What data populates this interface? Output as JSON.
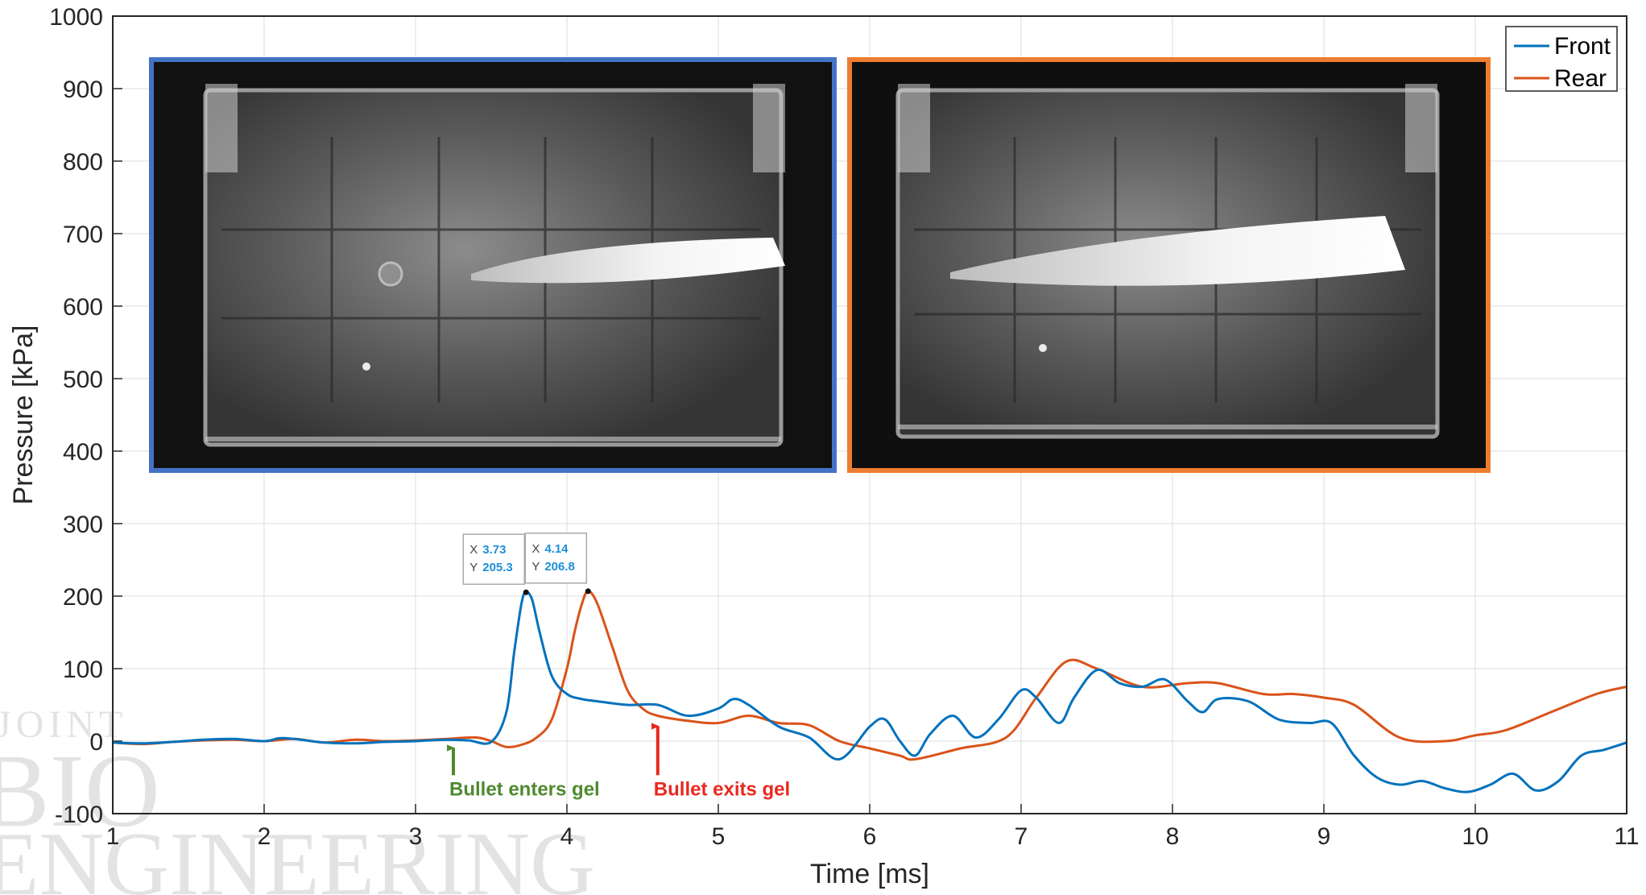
{
  "chart_data": {
    "type": "line",
    "title": "",
    "xlabel": "Time [ms]",
    "ylabel": "Pressure [kPa]",
    "xlim": [
      1,
      11
    ],
    "ylim": [
      -100,
      1000
    ],
    "xticks": [
      "1",
      "2",
      "3",
      "4",
      "5",
      "6",
      "7",
      "8",
      "9",
      "10",
      "11"
    ],
    "yticks": [
      "-100",
      "0",
      "100",
      "200",
      "300",
      "400",
      "500",
      "600",
      "700",
      "800",
      "900",
      "1000"
    ],
    "grid": true,
    "legend_position": "top-right",
    "series": [
      {
        "name": "Front",
        "color": "#0072BD",
        "x": [
          1.0,
          1.2,
          1.4,
          1.6,
          1.8,
          2.0,
          2.1,
          2.2,
          2.4,
          2.6,
          2.8,
          3.0,
          3.2,
          3.35,
          3.5,
          3.6,
          3.65,
          3.7,
          3.73,
          3.77,
          3.82,
          3.9,
          4.0,
          4.1,
          4.2,
          4.4,
          4.6,
          4.8,
          5.0,
          5.1,
          5.2,
          5.4,
          5.6,
          5.8,
          6.0,
          6.1,
          6.2,
          6.3,
          6.4,
          6.55,
          6.7,
          6.85,
          7.0,
          7.1,
          7.25,
          7.35,
          7.5,
          7.65,
          7.8,
          7.95,
          8.1,
          8.2,
          8.3,
          8.5,
          8.7,
          8.9,
          9.05,
          9.2,
          9.35,
          9.5,
          9.65,
          9.8,
          9.95,
          10.1,
          10.25,
          10.4,
          10.55,
          10.7,
          10.85,
          11.0
        ],
        "values": [
          -2,
          -3,
          -1,
          2,
          3,
          0,
          4,
          3,
          -2,
          -3,
          -1,
          0,
          2,
          1,
          -1,
          40,
          120,
          190,
          205.3,
          195,
          150,
          90,
          65,
          58,
          55,
          50,
          50,
          35,
          45,
          58,
          50,
          20,
          5,
          -25,
          20,
          30,
          0,
          -20,
          10,
          35,
          5,
          30,
          70,
          60,
          25,
          60,
          98,
          80,
          75,
          85,
          55,
          40,
          58,
          55,
          30,
          25,
          25,
          -20,
          -50,
          -60,
          -55,
          -65,
          -70,
          -60,
          -45,
          -68,
          -55,
          -20,
          -12,
          -2
        ]
      },
      {
        "name": "Rear",
        "color": "#D95319",
        "x": [
          1.0,
          1.2,
          1.4,
          1.6,
          1.8,
          2.0,
          2.2,
          2.4,
          2.6,
          2.8,
          3.0,
          3.2,
          3.4,
          3.5,
          3.6,
          3.7,
          3.8,
          3.9,
          4.0,
          4.05,
          4.1,
          4.14,
          4.2,
          4.3,
          4.4,
          4.5,
          4.6,
          4.8,
          5.0,
          5.2,
          5.4,
          5.6,
          5.8,
          6.0,
          6.2,
          6.3,
          6.6,
          6.9,
          7.1,
          7.3,
          7.5,
          7.8,
          8.1,
          8.3,
          8.6,
          8.8,
          9.0,
          9.2,
          9.5,
          9.8,
          10.0,
          10.2,
          10.5,
          10.8,
          11.0
        ],
        "values": [
          -2,
          -4,
          -1,
          1,
          2,
          0,
          3,
          -2,
          2,
          0,
          1,
          3,
          5,
          0,
          -8,
          -5,
          5,
          30,
          100,
          150,
          190,
          206.8,
          190,
          130,
          70,
          45,
          35,
          28,
          25,
          35,
          25,
          22,
          0,
          -10,
          -20,
          -25,
          -10,
          5,
          60,
          110,
          100,
          75,
          80,
          80,
          65,
          65,
          60,
          50,
          5,
          0,
          8,
          15,
          40,
          65,
          75
        ]
      }
    ],
    "data_tips": [
      {
        "series": "Front",
        "x_key": "X",
        "x_value": "3.73",
        "y_key": "Y",
        "y_value": "205.3"
      },
      {
        "series": "Rear",
        "x_key": "X",
        "x_value": "4.14",
        "y_key": "Y",
        "y_value": "206.8"
      }
    ],
    "annotations": [
      {
        "text": "Bullet enters gel",
        "x": 3.25,
        "color": "#4e8a2e"
      },
      {
        "text": "Bullet exits gel",
        "x": 4.6,
        "color": "#e8281e"
      }
    ],
    "insets": [
      {
        "name": "front-frame",
        "border_color": "#4472C4",
        "description": "high-speed camera frame"
      },
      {
        "name": "rear-frame",
        "border_color": "#ED7D31",
        "description": "high-speed camera frame"
      }
    ],
    "watermark": {
      "lines": [
        "JOINT",
        "BIO",
        "ENGINEERING"
      ]
    }
  }
}
